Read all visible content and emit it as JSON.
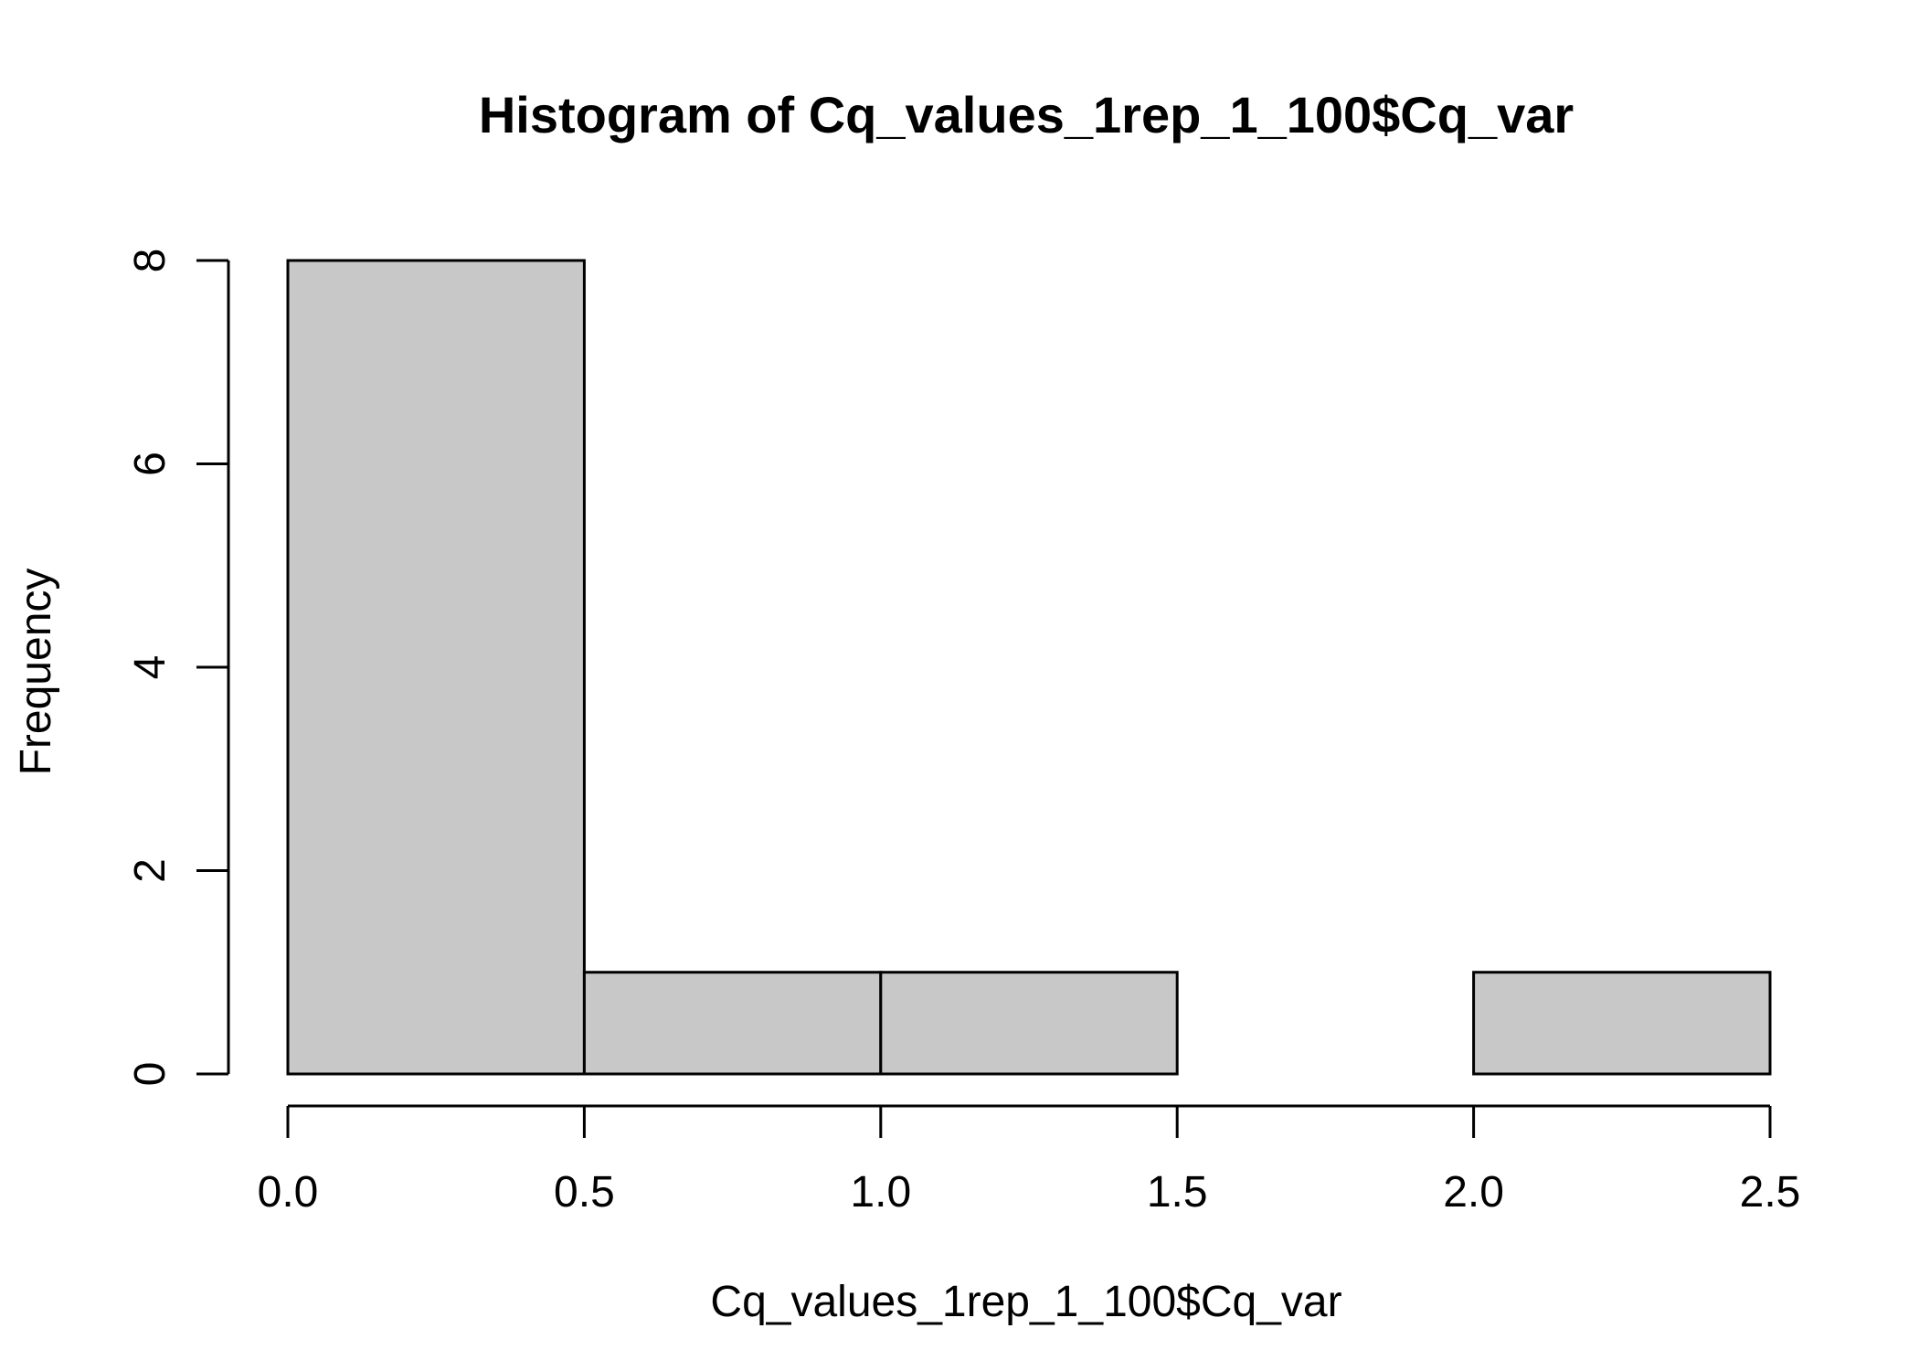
{
  "chart_data": {
    "type": "bar",
    "title": "Histogram of Cq_values_1rep_1_100$Cq_var",
    "xlabel": "Cq_values_1rep_1_100$Cq_var",
    "ylabel": "Frequency",
    "bins": [
      {
        "start": 0.0,
        "end": 0.5,
        "count": 8
      },
      {
        "start": 0.5,
        "end": 1.0,
        "count": 1
      },
      {
        "start": 1.0,
        "end": 1.5,
        "count": 1
      },
      {
        "start": 1.5,
        "end": 2.0,
        "count": 0
      },
      {
        "start": 2.0,
        "end": 2.5,
        "count": 1
      }
    ],
    "xlim": [
      0.0,
      2.5
    ],
    "ylim": [
      0,
      8
    ],
    "x_ticks": [
      "0.0",
      "0.5",
      "1.0",
      "1.5",
      "2.0",
      "2.5"
    ],
    "y_ticks": [
      "0",
      "2",
      "4",
      "6",
      "8"
    ],
    "grid": false,
    "legend": "none",
    "bar_fill": "#c8c8c8",
    "bar_stroke": "#000000"
  }
}
